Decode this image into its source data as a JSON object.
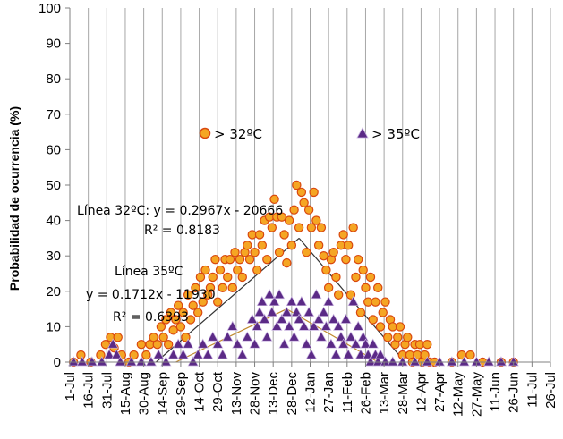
{
  "chart_data": {
    "type": "scatter",
    "ylabel": "Probabilidad de ocurrencia (%)",
    "xlabel": "",
    "ylim": [
      0,
      100
    ],
    "yticks": [
      0,
      10,
      20,
      30,
      40,
      50,
      60,
      70,
      80,
      90,
      100
    ],
    "x_tick_labels": [
      "1-Jul",
      "16-Jul",
      "31-Jul",
      "15-Aug",
      "30-Aug",
      "14-Sep",
      "29-Sep",
      "14-Oct",
      "29-Oct",
      "13-Nov",
      "28-Nov",
      "13-Dec",
      "28-Dec",
      "12-Jan",
      "27-Jan",
      "11-Feb",
      "26-Feb",
      "13-Mar",
      "28-Mar",
      "12-Apr",
      "27-Apr",
      "12-May",
      "27-May",
      "11-Jun",
      "26-Jun",
      "11-Jul",
      "26-Jul"
    ],
    "x_tick_spacing_days": 15,
    "grid": "vertical",
    "legend_position": "upper-center",
    "series": [
      {
        "name": "> 32ºC",
        "marker": "circle",
        "color": "#F5A623",
        "edge_color": "#D9480F",
        "points": [
          [
            3,
            0
          ],
          [
            9,
            2
          ],
          [
            17,
            0
          ],
          [
            25,
            2
          ],
          [
            29,
            5
          ],
          [
            33,
            7
          ],
          [
            36,
            4
          ],
          [
            39,
            7
          ],
          [
            42,
            2
          ],
          [
            48,
            0
          ],
          [
            52,
            2
          ],
          [
            58,
            5
          ],
          [
            62,
            2
          ],
          [
            65,
            5
          ],
          [
            68,
            7
          ],
          [
            71,
            5
          ],
          [
            74,
            10
          ],
          [
            76,
            7
          ],
          [
            78,
            12
          ],
          [
            80,
            5
          ],
          [
            82,
            14
          ],
          [
            84,
            9
          ],
          [
            86,
            12
          ],
          [
            88,
            16
          ],
          [
            90,
            10
          ],
          [
            92,
            14
          ],
          [
            94,
            7
          ],
          [
            96,
            19
          ],
          [
            98,
            12
          ],
          [
            100,
            16
          ],
          [
            102,
            21
          ],
          [
            104,
            14
          ],
          [
            106,
            24
          ],
          [
            108,
            17
          ],
          [
            110,
            26
          ],
          [
            112,
            19
          ],
          [
            114,
            21
          ],
          [
            116,
            24
          ],
          [
            118,
            29
          ],
          [
            120,
            17
          ],
          [
            122,
            26
          ],
          [
            124,
            21
          ],
          [
            126,
            29
          ],
          [
            128,
            24
          ],
          [
            130,
            29
          ],
          [
            132,
            21
          ],
          [
            134,
            31
          ],
          [
            136,
            26
          ],
          [
            138,
            29
          ],
          [
            140,
            24
          ],
          [
            142,
            31
          ],
          [
            144,
            33
          ],
          [
            146,
            29
          ],
          [
            148,
            36
          ],
          [
            150,
            31
          ],
          [
            152,
            26
          ],
          [
            154,
            36
          ],
          [
            156,
            33
          ],
          [
            158,
            40
          ],
          [
            160,
            29
          ],
          [
            162,
            41
          ],
          [
            164,
            38
          ],
          [
            166,
            46
          ],
          [
            168,
            41
          ],
          [
            170,
            31
          ],
          [
            172,
            41
          ],
          [
            174,
            36
          ],
          [
            176,
            28
          ],
          [
            178,
            40
          ],
          [
            180,
            33
          ],
          [
            182,
            43
          ],
          [
            184,
            50
          ],
          [
            186,
            38
          ],
          [
            188,
            48
          ],
          [
            190,
            45
          ],
          [
            192,
            31
          ],
          [
            194,
            43
          ],
          [
            196,
            38
          ],
          [
            198,
            48
          ],
          [
            200,
            40
          ],
          [
            202,
            33
          ],
          [
            204,
            38
          ],
          [
            206,
            30
          ],
          [
            208,
            26
          ],
          [
            210,
            21
          ],
          [
            212,
            29
          ],
          [
            214,
            31
          ],
          [
            216,
            24
          ],
          [
            218,
            19
          ],
          [
            220,
            33
          ],
          [
            222,
            36
          ],
          [
            224,
            29
          ],
          [
            226,
            33
          ],
          [
            228,
            19
          ],
          [
            230,
            38
          ],
          [
            232,
            24
          ],
          [
            234,
            29
          ],
          [
            236,
            14
          ],
          [
            238,
            26
          ],
          [
            240,
            21
          ],
          [
            242,
            17
          ],
          [
            244,
            24
          ],
          [
            246,
            12
          ],
          [
            248,
            17
          ],
          [
            250,
            21
          ],
          [
            252,
            10
          ],
          [
            254,
            14
          ],
          [
            256,
            17
          ],
          [
            258,
            7
          ],
          [
            260,
            12
          ],
          [
            262,
            10
          ],
          [
            264,
            5
          ],
          [
            266,
            7
          ],
          [
            268,
            10
          ],
          [
            270,
            2
          ],
          [
            272,
            5
          ],
          [
            274,
            7
          ],
          [
            276,
            2
          ],
          [
            278,
            0
          ],
          [
            280,
            5
          ],
          [
            282,
            2
          ],
          [
            284,
            5
          ],
          [
            286,
            0
          ],
          [
            288,
            2
          ],
          [
            290,
            5
          ],
          [
            292,
            0
          ],
          [
            296,
            0
          ],
          [
            310,
            0
          ],
          [
            318,
            2
          ],
          [
            325,
            2
          ],
          [
            335,
            0
          ],
          [
            350,
            0
          ],
          [
            360,
            0
          ]
        ]
      },
      {
        "name": "> 35ºC",
        "marker": "triangle",
        "color": "#5B2A86",
        "edge_color": "#C9B4E0",
        "points": [
          [
            3,
            0
          ],
          [
            10,
            0
          ],
          [
            18,
            0
          ],
          [
            26,
            0
          ],
          [
            32,
            2
          ],
          [
            35,
            5
          ],
          [
            38,
            2
          ],
          [
            41,
            0
          ],
          [
            50,
            0
          ],
          [
            58,
            0
          ],
          [
            66,
            0
          ],
          [
            72,
            2
          ],
          [
            78,
            0
          ],
          [
            84,
            2
          ],
          [
            88,
            5
          ],
          [
            92,
            2
          ],
          [
            96,
            5
          ],
          [
            100,
            0
          ],
          [
            104,
            2
          ],
          [
            108,
            5
          ],
          [
            112,
            2
          ],
          [
            116,
            7
          ],
          [
            120,
            5
          ],
          [
            124,
            2
          ],
          [
            128,
            7
          ],
          [
            132,
            10
          ],
          [
            136,
            5
          ],
          [
            140,
            2
          ],
          [
            144,
            7
          ],
          [
            148,
            12
          ],
          [
            150,
            5
          ],
          [
            152,
            10
          ],
          [
            154,
            14
          ],
          [
            156,
            17
          ],
          [
            158,
            12
          ],
          [
            160,
            7
          ],
          [
            162,
            19
          ],
          [
            164,
            14
          ],
          [
            166,
            17
          ],
          [
            168,
            10
          ],
          [
            170,
            19
          ],
          [
            172,
            12
          ],
          [
            174,
            5
          ],
          [
            176,
            14
          ],
          [
            178,
            10
          ],
          [
            180,
            17
          ],
          [
            182,
            7
          ],
          [
            184,
            14
          ],
          [
            186,
            12
          ],
          [
            188,
            17
          ],
          [
            190,
            10
          ],
          [
            192,
            5
          ],
          [
            194,
            14
          ],
          [
            196,
            2
          ],
          [
            198,
            10
          ],
          [
            200,
            19
          ],
          [
            202,
            12
          ],
          [
            204,
            7
          ],
          [
            206,
            14
          ],
          [
            208,
            10
          ],
          [
            210,
            17
          ],
          [
            212,
            5
          ],
          [
            214,
            12
          ],
          [
            216,
            2
          ],
          [
            218,
            10
          ],
          [
            220,
            7
          ],
          [
            222,
            5
          ],
          [
            224,
            12
          ],
          [
            226,
            2
          ],
          [
            228,
            7
          ],
          [
            230,
            17
          ],
          [
            232,
            5
          ],
          [
            234,
            10
          ],
          [
            236,
            2
          ],
          [
            238,
            7
          ],
          [
            240,
            5
          ],
          [
            242,
            2
          ],
          [
            244,
            0
          ],
          [
            246,
            5
          ],
          [
            248,
            2
          ],
          [
            250,
            0
          ],
          [
            252,
            2
          ],
          [
            256,
            0
          ],
          [
            262,
            0
          ],
          [
            270,
            0
          ],
          [
            280,
            0
          ],
          [
            290,
            0
          ],
          [
            300,
            0
          ],
          [
            310,
            0
          ],
          [
            320,
            0
          ],
          [
            330,
            0
          ],
          [
            340,
            0
          ],
          [
            350,
            0
          ],
          [
            360,
            0
          ]
        ]
      }
    ],
    "trendlines": [
      {
        "name": "Línea 32ºC",
        "equation": "y = 0.2967x - 20666",
        "r2": "R² = 0.8183",
        "segments": [
          [
            [
              70,
              0
            ],
            [
              186,
              35
            ]
          ],
          [
            [
              186,
              35
            ],
            [
              272,
              0
            ]
          ]
        ],
        "color": "#333333"
      },
      {
        "name": "Línea 35ºC",
        "equation": "y = 0.1712x - 11930",
        "r2": "R² = 0.6393",
        "segments": [
          [
            [
              86,
              0
            ],
            [
              176,
              15
            ]
          ],
          [
            [
              176,
              15
            ],
            [
              250,
              0
            ]
          ]
        ],
        "color": "#C08A2E"
      }
    ],
    "annotations": {
      "line32_label": "Línea 32ºC:  y = 0.2967x - 20666",
      "line32_r2": "R² = 0.8183",
      "line35_title": "Línea 35ºC",
      "line35_eq": "y = 0.1712x - 11930",
      "line35_r2": "R² = 0.6393"
    },
    "legend": {
      "item1": "> 32ºC",
      "item2": "> 35ºC"
    }
  }
}
